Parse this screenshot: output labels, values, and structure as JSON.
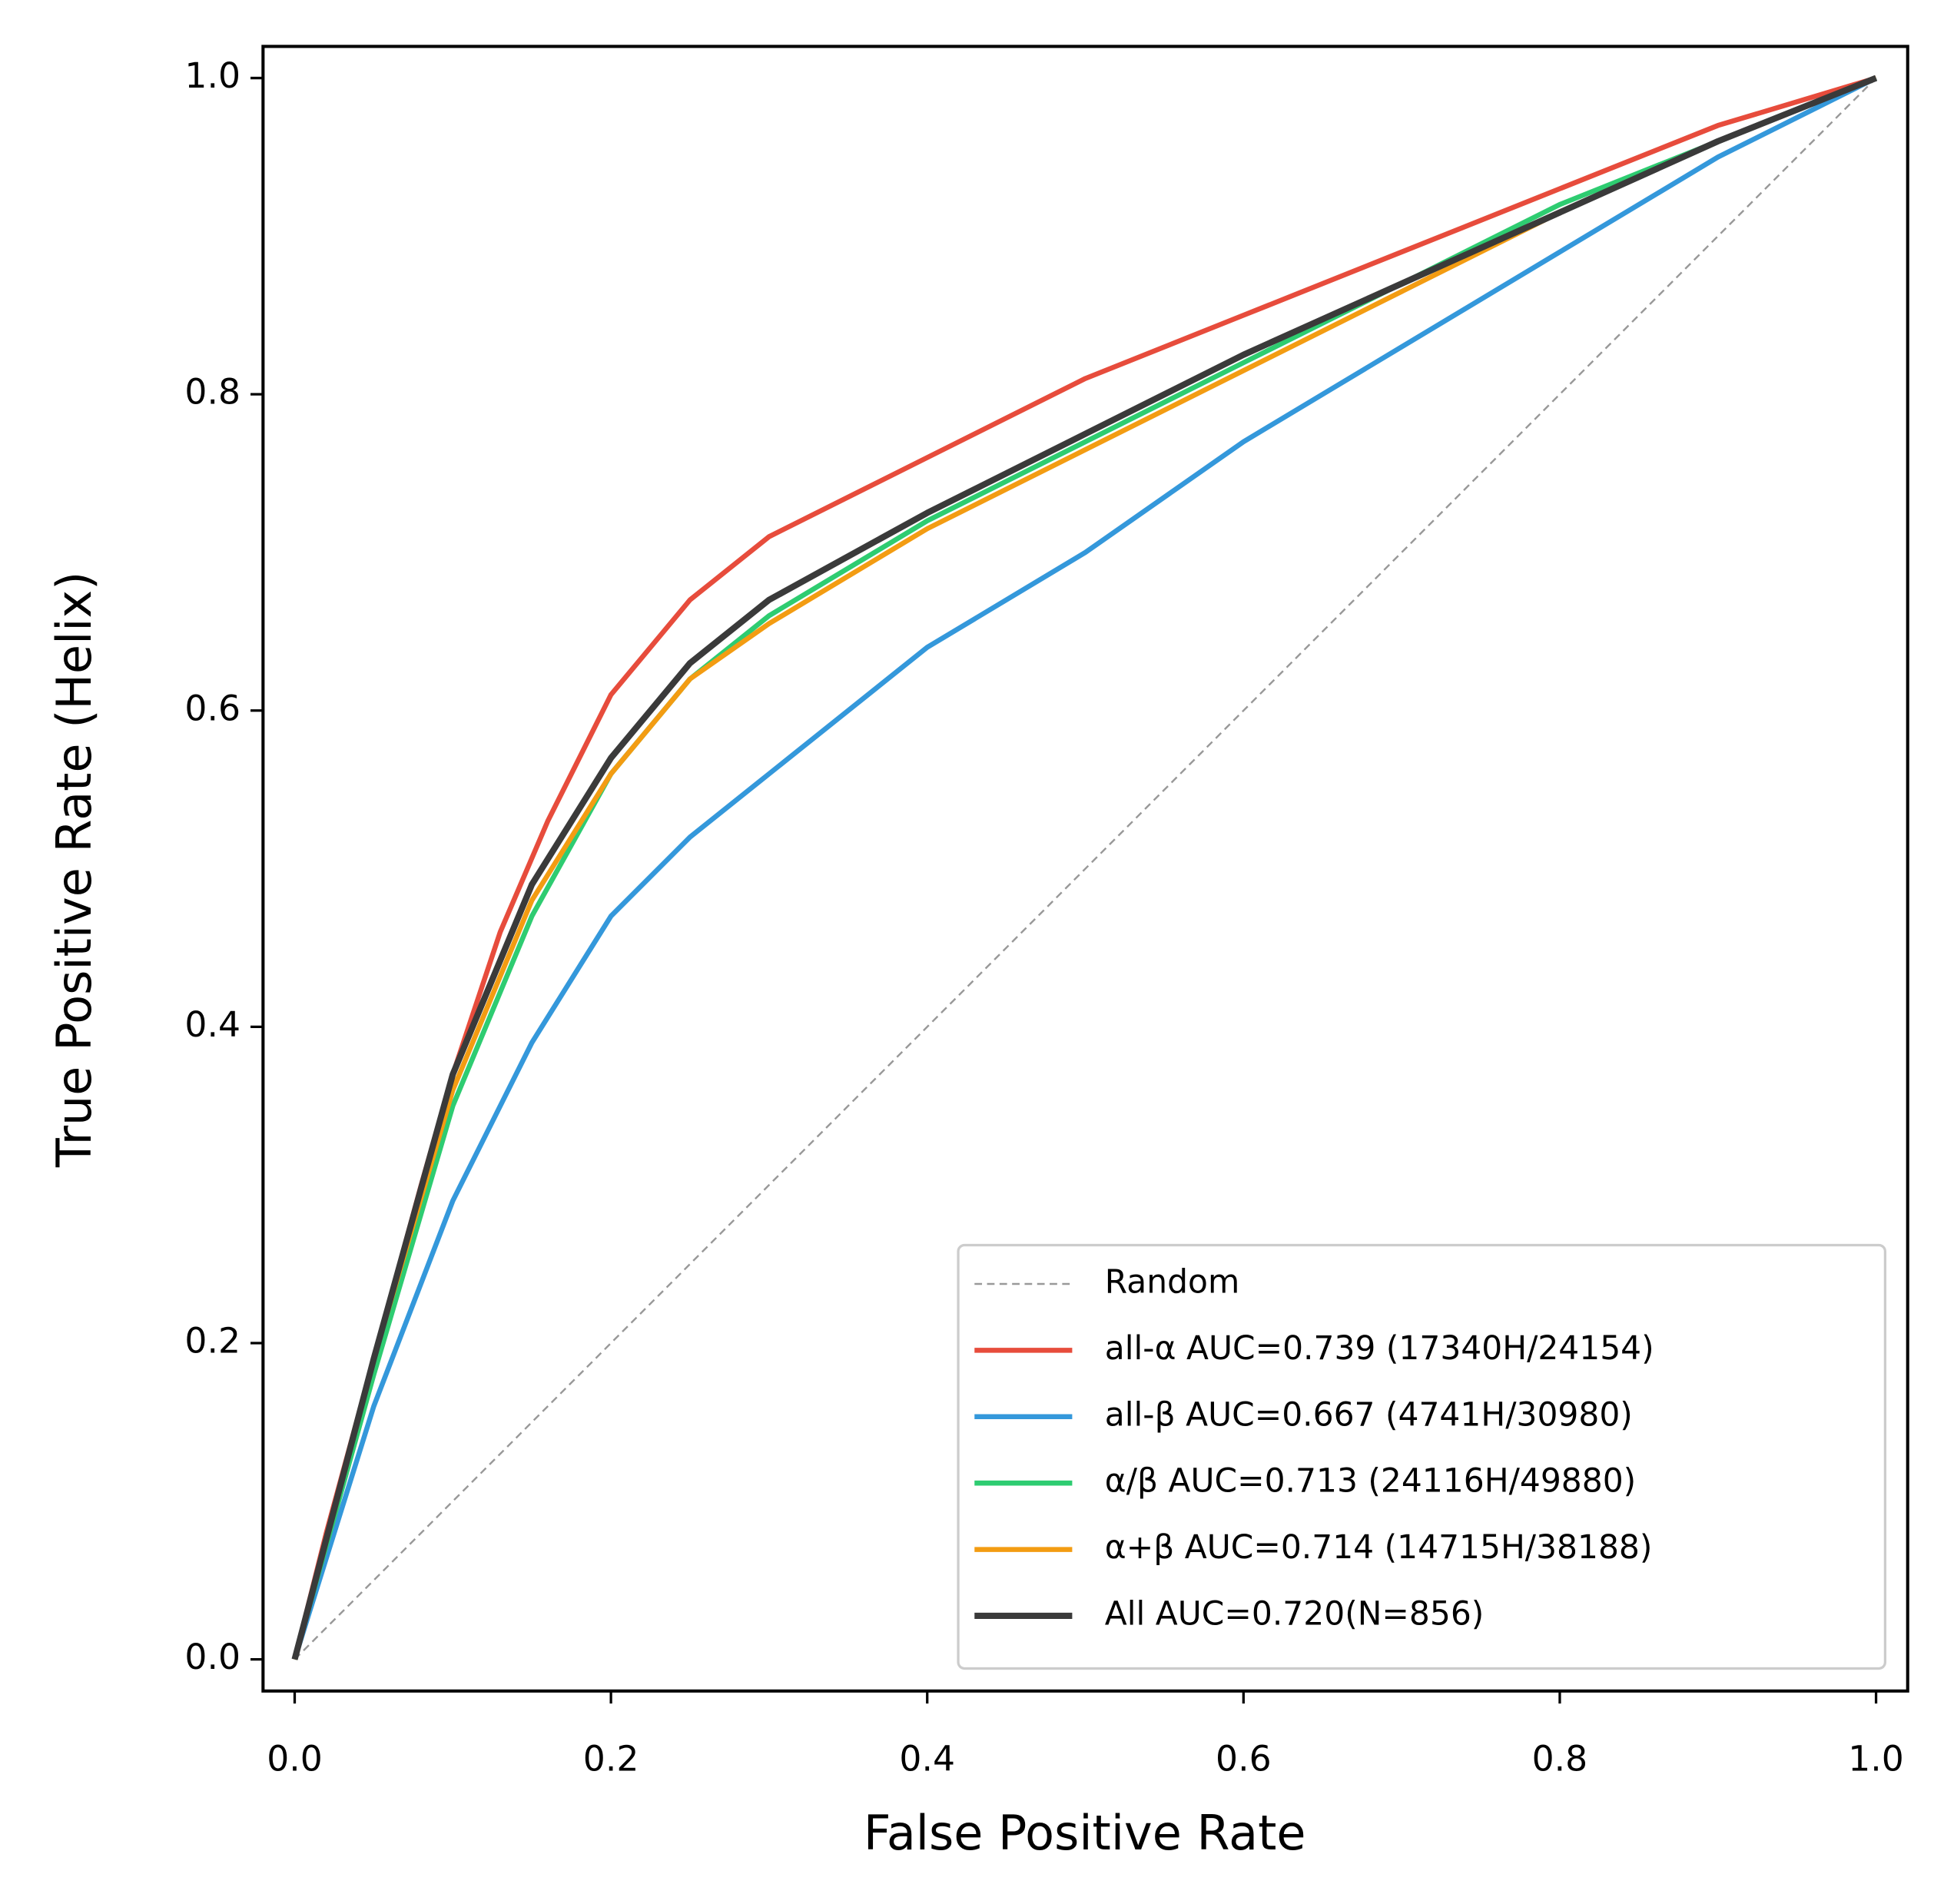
{
  "chart_data": {
    "type": "line",
    "xlabel": "False Positive Rate",
    "ylabel": "True Positive Rate (Helix)",
    "xlim": [
      -0.02,
      1.02
    ],
    "ylim": [
      -0.02,
      1.02
    ],
    "xticks": [
      {
        "value": 0,
        "label": "0.0"
      },
      0.2,
      0.4,
      0.6,
      0.8,
      {
        "value": 1,
        "label": "1.0"
      }
    ],
    "yticks": [
      {
        "value": 0,
        "label": "0.0"
      },
      0.2,
      0.4,
      0.6,
      0.8,
      {
        "value": 1,
        "label": "1.0"
      }
    ],
    "legend": "lower right",
    "series": [
      {
        "name": "Random",
        "color": "#999999",
        "dashed": true,
        "x": [
          0,
          1
        ],
        "values": [
          0,
          1
        ]
      },
      {
        "name": "all-α AUC=0.739 (17340H/24154)",
        "color": "#e74c3c",
        "x": [
          0,
          0.02,
          0.05,
          0.08,
          0.1,
          0.13,
          0.16,
          0.2,
          0.25,
          0.3,
          0.4,
          0.5,
          0.6,
          0.7,
          0.8,
          0.9,
          1
        ],
        "values": [
          0,
          0.08,
          0.19,
          0.3,
          0.37,
          0.46,
          0.53,
          0.61,
          0.67,
          0.71,
          0.76,
          0.81,
          0.85,
          0.89,
          0.93,
          0.97,
          1
        ]
      },
      {
        "name": "all-β AUC=0.667 (4741H/30980)",
        "color": "#3498db",
        "x": [
          0,
          0.05,
          0.1,
          0.15,
          0.2,
          0.25,
          0.3,
          0.35,
          0.4,
          0.5,
          0.6,
          0.7,
          0.8,
          0.9,
          1
        ],
        "values": [
          0,
          0.16,
          0.29,
          0.39,
          0.47,
          0.52,
          0.56,
          0.6,
          0.64,
          0.7,
          0.77,
          0.83,
          0.89,
          0.95,
          1
        ]
      },
      {
        "name": "α/β AUC=0.713 (24116H/49880)",
        "color": "#2ecc71",
        "x": [
          0,
          0.05,
          0.1,
          0.15,
          0.2,
          0.25,
          0.3,
          0.4,
          0.5,
          0.6,
          0.7,
          0.8,
          0.9,
          1
        ],
        "values": [
          0,
          0.18,
          0.35,
          0.47,
          0.56,
          0.62,
          0.66,
          0.72,
          0.77,
          0.82,
          0.87,
          0.92,
          0.96,
          1
        ]
      },
      {
        "name": "α+β AUC=0.714 (14715H/38188)",
        "color": "#f39c12",
        "x": [
          0,
          0.05,
          0.1,
          0.15,
          0.2,
          0.25,
          0.3,
          0.4,
          0.5,
          0.6,
          0.7,
          0.8,
          0.9,
          1
        ],
        "values": [
          0,
          0.19,
          0.36,
          0.48,
          0.56,
          0.62,
          0.655,
          0.715,
          0.765,
          0.815,
          0.865,
          0.915,
          0.96,
          1
        ]
      },
      {
        "name": "All AUC=0.720(N=856)",
        "color": "#3a3a3a",
        "width": 5,
        "x": [
          0,
          0.05,
          0.1,
          0.15,
          0.2,
          0.25,
          0.3,
          0.4,
          0.5,
          0.6,
          0.7,
          0.8,
          0.9,
          1
        ],
        "values": [
          0,
          0.19,
          0.37,
          0.49,
          0.57,
          0.63,
          0.67,
          0.725,
          0.775,
          0.825,
          0.87,
          0.915,
          0.96,
          1
        ]
      }
    ]
  }
}
